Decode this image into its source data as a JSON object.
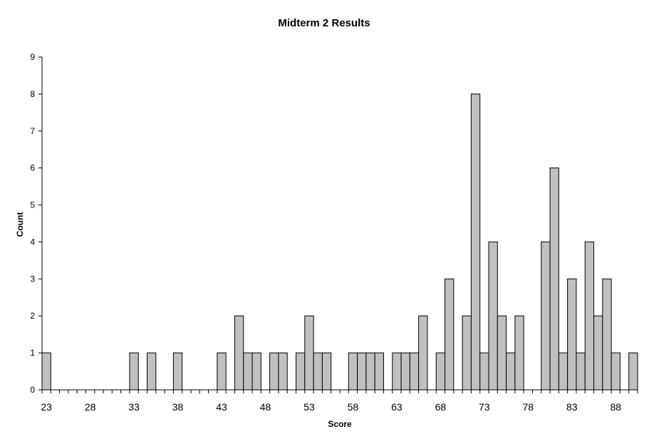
{
  "chart_data": {
    "type": "bar",
    "title": "Midterm 2 Results",
    "xlabel": "Score",
    "ylabel": "Count",
    "x_range": [
      23,
      91
    ],
    "ylim": [
      0,
      9
    ],
    "y_ticks": [
      0,
      1,
      2,
      3,
      4,
      5,
      6,
      7,
      8,
      9
    ],
    "x_tick_labels": [
      "23",
      "28",
      "33",
      "38",
      "43",
      "48",
      "53",
      "58",
      "63",
      "68",
      "73",
      "78",
      "83",
      "88"
    ],
    "grid": false,
    "legend": "none",
    "bar_color": "#c0c0c0",
    "x": [
      23,
      24,
      25,
      26,
      27,
      28,
      29,
      30,
      31,
      32,
      33,
      34,
      35,
      36,
      37,
      38,
      39,
      40,
      41,
      42,
      43,
      44,
      45,
      46,
      47,
      48,
      49,
      50,
      51,
      52,
      53,
      54,
      55,
      56,
      57,
      58,
      59,
      60,
      61,
      62,
      63,
      64,
      65,
      66,
      67,
      68,
      69,
      70,
      71,
      72,
      73,
      74,
      75,
      76,
      77,
      78,
      79,
      80,
      81,
      82,
      83,
      84,
      85,
      86,
      87,
      88,
      89,
      90
    ],
    "values": [
      1,
      0,
      0,
      0,
      0,
      0,
      0,
      0,
      0,
      0,
      1,
      0,
      1,
      0,
      0,
      1,
      0,
      0,
      0,
      0,
      1,
      0,
      2,
      1,
      1,
      0,
      1,
      1,
      0,
      1,
      2,
      1,
      1,
      0,
      0,
      1,
      1,
      1,
      1,
      0,
      1,
      1,
      1,
      2,
      0,
      1,
      3,
      0,
      2,
      8,
      1,
      4,
      2,
      1,
      2,
      0,
      0,
      4,
      6,
      1,
      3,
      1,
      4,
      2,
      3,
      1,
      0,
      1
    ]
  }
}
